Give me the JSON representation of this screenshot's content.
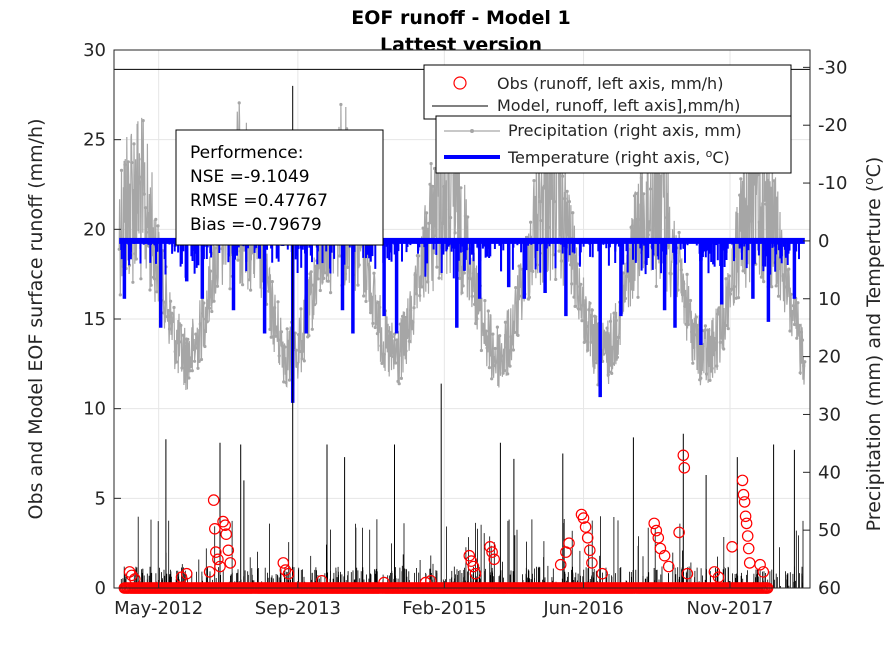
{
  "chart_data": {
    "type": "line",
    "title": "EOF runoff - Model 1",
    "subtitle": "Lattest version",
    "ylabel_left": "Obs and Model EOF surface runoff (mm/h)",
    "ylabel_right_prefix": "Precipitation (mm) and Temperture (",
    "ylabel_right_sup": "o",
    "ylabel_right_suffix": "C)",
    "x_tick_labels": [
      "May-2012",
      "Sep-2013",
      "Feb-2015",
      "Jun-2016",
      "Nov-2017"
    ],
    "x_ticks": [
      2012.33,
      2013.67,
      2015.08,
      2016.42,
      2017.83
    ],
    "xlim": [
      2011.9,
      2018.6
    ],
    "ylim_left": [
      0,
      30
    ],
    "y_ticks_left": [
      0,
      5,
      10,
      15,
      20,
      25,
      30
    ],
    "ylim_right": [
      60,
      -33
    ],
    "right_axis_reversed": true,
    "y_ticks_right": [
      60,
      50,
      40,
      30,
      20,
      10,
      0,
      -10,
      -20,
      -30
    ],
    "grid": true,
    "legend": {
      "placement": "top-right",
      "entries": [
        {
          "label": "Obs (runoff, left axis, mm/h)",
          "color": "#ff0000",
          "marker": "circle"
        },
        {
          "label": "Model, runoff, left axis],mm/h)",
          "color": "#000000",
          "marker": "line"
        },
        {
          "label": "Precipitation (right axis, mm)",
          "color": "#a6a6a6",
          "marker": "line-dot"
        },
        {
          "label_prefix": "Temperature (right axis, ",
          "label_sup": "o",
          "label_suffix": "C)",
          "color": "#0000ff",
          "marker": "thick-line"
        }
      ]
    },
    "annotation": {
      "lines": [
        "Performence:",
        "NSE =-9.1049",
        "RMSE =0.47767",
        "Bias =-0.79679"
      ]
    },
    "series": [
      {
        "name": "Obs (runoff, left axis, mm/h)",
        "axis": "left",
        "color": "#ff0000",
        "style": "circle",
        "baseline_range": [
          2012.0,
          2018.2
        ],
        "baseline_value": 0,
        "points": [
          [
            2012.05,
            0.9
          ],
          [
            2012.07,
            0.7
          ],
          [
            2012.1,
            0.5
          ],
          [
            2012.55,
            0.6
          ],
          [
            2012.6,
            0.8
          ],
          [
            2012.82,
            0.9
          ],
          [
            2012.86,
            4.9
          ],
          [
            2012.87,
            3.3
          ],
          [
            2012.88,
            2.0
          ],
          [
            2012.9,
            1.6
          ],
          [
            2012.92,
            1.2
          ],
          [
            2012.95,
            3.7
          ],
          [
            2012.97,
            3.5
          ],
          [
            2012.98,
            3.0
          ],
          [
            2013.0,
            2.1
          ],
          [
            2013.02,
            1.4
          ],
          [
            2013.53,
            1.4
          ],
          [
            2013.55,
            1.0
          ],
          [
            2013.58,
            0.8
          ],
          [
            2013.9,
            0.4
          ],
          [
            2014.5,
            0.3
          ],
          [
            2014.9,
            0.3
          ],
          [
            2014.95,
            0.4
          ],
          [
            2015.32,
            1.8
          ],
          [
            2015.34,
            1.5
          ],
          [
            2015.36,
            1.2
          ],
          [
            2015.38,
            0.8
          ],
          [
            2015.52,
            2.3
          ],
          [
            2015.54,
            2.0
          ],
          [
            2015.56,
            1.6
          ],
          [
            2016.2,
            1.3
          ],
          [
            2016.25,
            2.0
          ],
          [
            2016.28,
            2.5
          ],
          [
            2016.4,
            4.1
          ],
          [
            2016.42,
            3.9
          ],
          [
            2016.44,
            3.4
          ],
          [
            2016.46,
            2.8
          ],
          [
            2016.48,
            2.1
          ],
          [
            2016.5,
            1.4
          ],
          [
            2016.6,
            0.8
          ],
          [
            2017.1,
            3.6
          ],
          [
            2017.12,
            3.2
          ],
          [
            2017.14,
            2.8
          ],
          [
            2017.16,
            2.2
          ],
          [
            2017.2,
            1.8
          ],
          [
            2017.24,
            1.2
          ],
          [
            2017.34,
            3.1
          ],
          [
            2017.38,
            7.4
          ],
          [
            2017.39,
            6.7
          ],
          [
            2017.42,
            0.8
          ],
          [
            2017.68,
            0.9
          ],
          [
            2017.72,
            0.6
          ],
          [
            2017.85,
            2.3
          ],
          [
            2017.95,
            6.0
          ],
          [
            2017.96,
            5.2
          ],
          [
            2017.97,
            4.8
          ],
          [
            2017.98,
            4.0
          ],
          [
            2017.99,
            3.6
          ],
          [
            2018.0,
            2.9
          ],
          [
            2018.01,
            2.2
          ],
          [
            2018.02,
            1.4
          ],
          [
            2018.12,
            1.3
          ],
          [
            2018.15,
            0.9
          ]
        ]
      },
      {
        "name": "Model, runoff, left axis],mm/h)",
        "axis": "left",
        "color": "#000000",
        "style": "spikes",
        "x_range": [
          2011.95,
          2018.55
        ],
        "peaks": [
          [
            2012.4,
            8.3
          ],
          [
            2012.92,
            8.1
          ],
          [
            2013.12,
            8.0
          ],
          [
            2013.15,
            6.0
          ],
          [
            2013.62,
            28.0
          ],
          [
            2013.95,
            8.0
          ],
          [
            2014.12,
            7.3
          ],
          [
            2014.6,
            8.0
          ],
          [
            2015.05,
            11.4
          ],
          [
            2015.62,
            8.1
          ],
          [
            2015.75,
            7.2
          ],
          [
            2016.22,
            7.5
          ],
          [
            2016.9,
            8.4
          ],
          [
            2017.38,
            8.6
          ],
          [
            2017.6,
            6.3
          ],
          [
            2017.9,
            7.3
          ],
          [
            2018.25,
            8.0
          ],
          [
            2018.45,
            7.7
          ]
        ]
      },
      {
        "name": "Precipitation (right axis, mm)",
        "axis": "right",
        "color": "#a6a6a6",
        "style": "dots-line",
        "seasonal_amplitude_range": [
          -28,
          30
        ],
        "maxima_years": [
          2012.6,
          2013.6,
          2014.6,
          2015.55,
          2016.6,
          2017.6,
          2018.5
        ],
        "minima_years": [
          2012.1,
          2013.1,
          2014.1,
          2015.1,
          2016.1,
          2017.1,
          2018.1
        ]
      },
      {
        "name": "Temperature (right axis, °C)",
        "axis": "right",
        "color": "#0000ff",
        "style": "thick-line",
        "baseline": 0,
        "dips": [
          [
            2012.0,
            10
          ],
          [
            2012.35,
            15
          ],
          [
            2012.6,
            7
          ],
          [
            2012.75,
            10
          ],
          [
            2013.05,
            12
          ],
          [
            2013.35,
            16
          ],
          [
            2013.62,
            28
          ],
          [
            2013.75,
            16
          ],
          [
            2014.1,
            12
          ],
          [
            2014.2,
            16
          ],
          [
            2014.5,
            13
          ],
          [
            2014.62,
            16
          ],
          [
            2015.2,
            15
          ],
          [
            2015.42,
            10
          ],
          [
            2015.7,
            8
          ],
          [
            2015.85,
            10
          ],
          [
            2016.05,
            9
          ],
          [
            2016.25,
            13
          ],
          [
            2016.58,
            27
          ],
          [
            2016.78,
            13
          ],
          [
            2017.2,
            12
          ],
          [
            2017.3,
            15
          ],
          [
            2017.55,
            18
          ],
          [
            2017.75,
            11
          ],
          [
            2018.05,
            10
          ],
          [
            2018.2,
            14
          ],
          [
            2018.45,
            10
          ]
        ]
      }
    ]
  }
}
